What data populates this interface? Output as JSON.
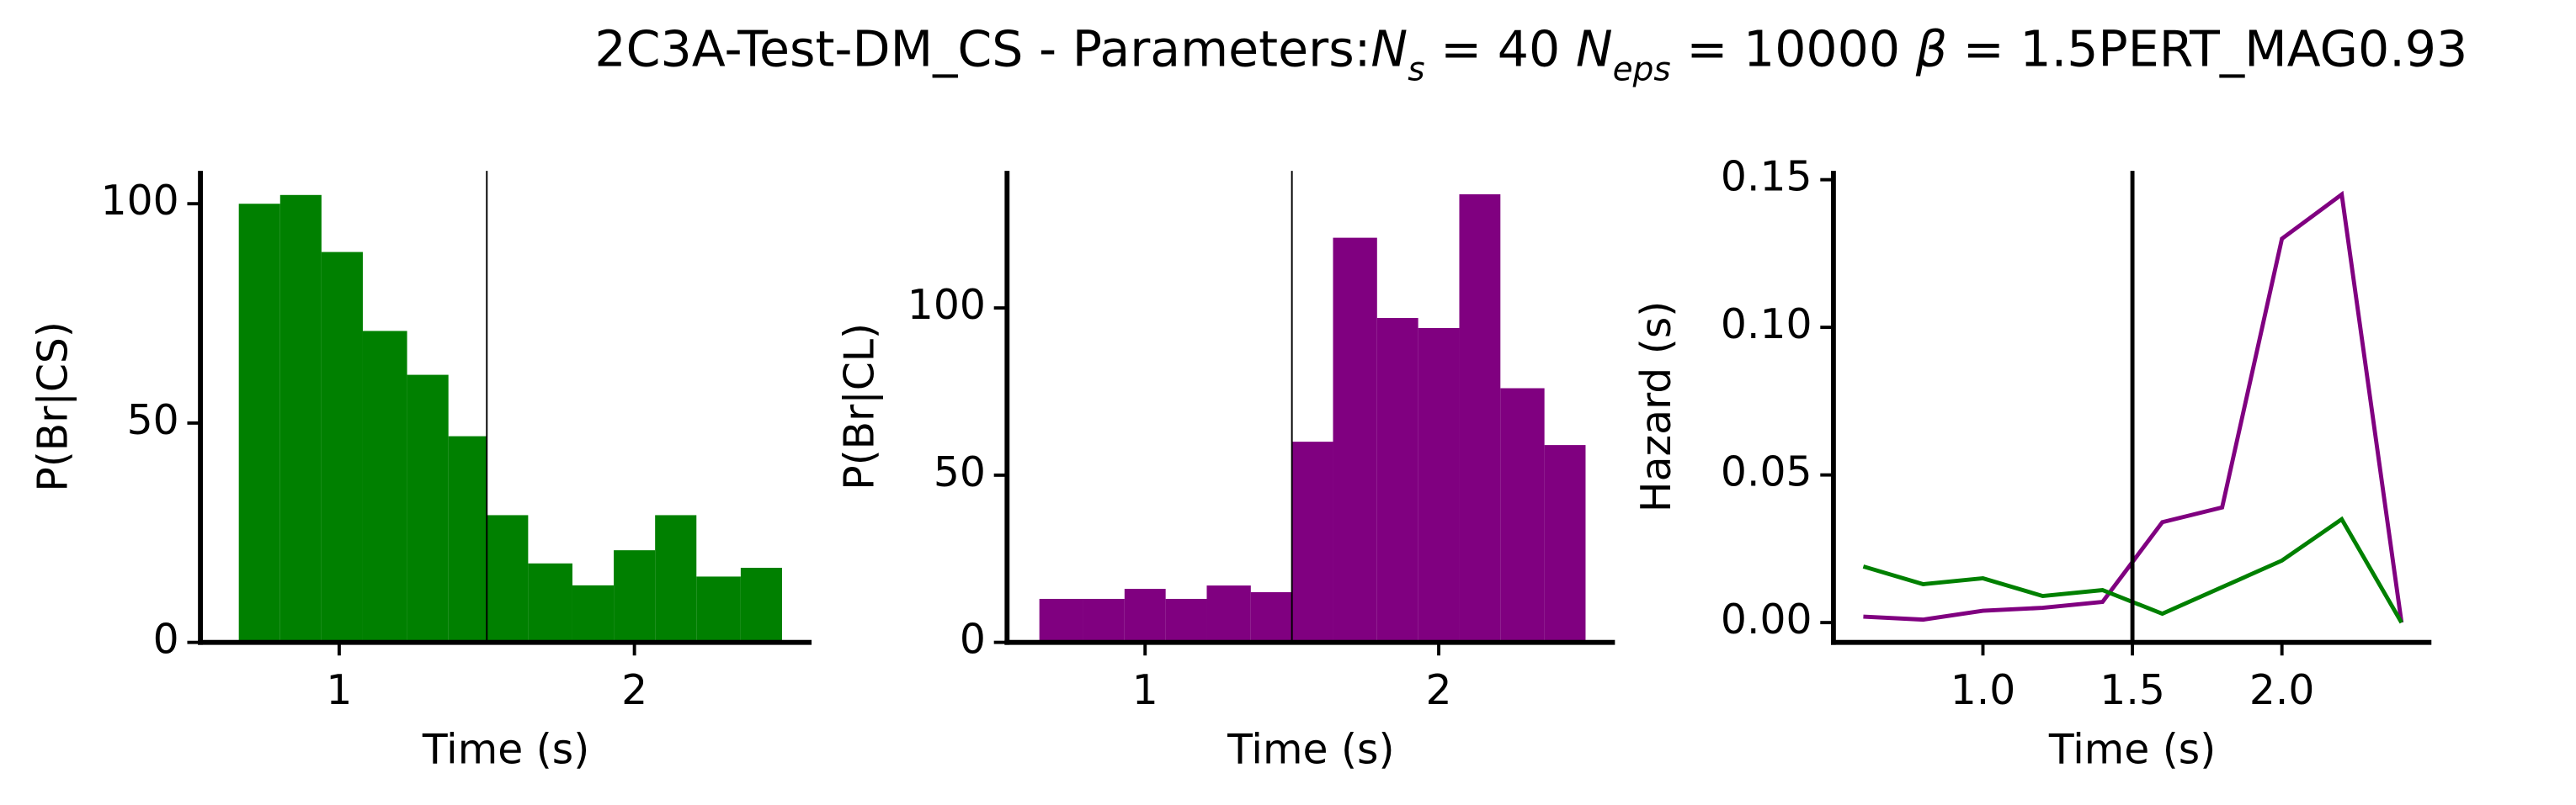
{
  "suptitle": [
    {
      "text": "2C3A-Test-DM_CS - Parameters:"
    },
    {
      "text": "N",
      "italic": true
    },
    {
      "text": "s",
      "italic": true,
      "sub": true
    },
    {
      "text": " = 40 "
    },
    {
      "text": "N",
      "italic": true
    },
    {
      "text": "eps",
      "italic": true,
      "sub": true
    },
    {
      "text": " = 10000 "
    },
    {
      "text": "β",
      "italic": true
    },
    {
      "text": " = 1.5PERT_MAG0.93"
    }
  ],
  "chart_data": [
    {
      "type": "histogram",
      "xlabel": "Time (s)",
      "ylabel": "P(Br|CS)",
      "color": "#008000",
      "bins": [
        0.66,
        0.8,
        0.94,
        1.08,
        1.23,
        1.37,
        1.5,
        1.64,
        1.79,
        1.93,
        2.07,
        2.21,
        2.36,
        2.5
      ],
      "values": [
        100,
        102,
        89,
        71,
        61,
        47,
        29,
        18,
        13,
        21,
        29,
        15,
        17
      ],
      "vline": 1.5,
      "xlim": [
        0.53,
        2.6
      ],
      "ylim": [
        0,
        107.5
      ],
      "xticks": [
        1,
        2
      ],
      "yticks": [
        0,
        50,
        100
      ]
    },
    {
      "type": "histogram",
      "xlabel": "Time (s)",
      "ylabel": "P(Br|CL)",
      "color": "#800080",
      "bins": [
        0.64,
        0.79,
        0.93,
        1.07,
        1.21,
        1.36,
        1.5,
        1.64,
        1.79,
        1.93,
        2.07,
        2.21,
        2.36,
        2.5
      ],
      "values": [
        13,
        13,
        16,
        13,
        17,
        15,
        60,
        121,
        97,
        94,
        134,
        76,
        59
      ],
      "vline": 1.5,
      "xlim": [
        0.53,
        2.6
      ],
      "ylim": [
        0,
        141
      ],
      "xticks": [
        1,
        2
      ],
      "yticks": [
        0,
        50,
        100
      ]
    },
    {
      "type": "line",
      "xlabel": "Time (s)",
      "ylabel": "Hazard (s)",
      "x": [
        0.6,
        0.8,
        1.0,
        1.2,
        1.4,
        1.6,
        1.8,
        2.0,
        2.2,
        2.4
      ],
      "series": [
        {
          "color": "#800080",
          "values": [
            0.002,
            0.001,
            0.004,
            0.005,
            0.007,
            0.034,
            0.039,
            0.13,
            0.145,
            0
          ]
        },
        {
          "color": "#008000",
          "values": [
            0.019,
            0.013,
            0.015,
            0.009,
            0.011,
            0.003,
            0.012,
            0.021,
            0.035,
            0
          ]
        }
      ],
      "vline": 1.5,
      "xlim": [
        0.5,
        2.5
      ],
      "ylim": [
        -0.0067,
        0.153
      ],
      "xticks": [
        {
          "value": 1,
          "label": "1.0"
        },
        {
          "value": 1.5,
          "label": "1.5"
        },
        {
          "value": 2,
          "label": "2.0"
        }
      ],
      "yticks": [
        {
          "value": 0,
          "label": "0.00"
        },
        {
          "value": 0.05,
          "label": "0.05"
        },
        {
          "value": 0.1,
          "label": "0.10"
        },
        {
          "value": 0.15,
          "label": "0.15"
        }
      ]
    }
  ]
}
